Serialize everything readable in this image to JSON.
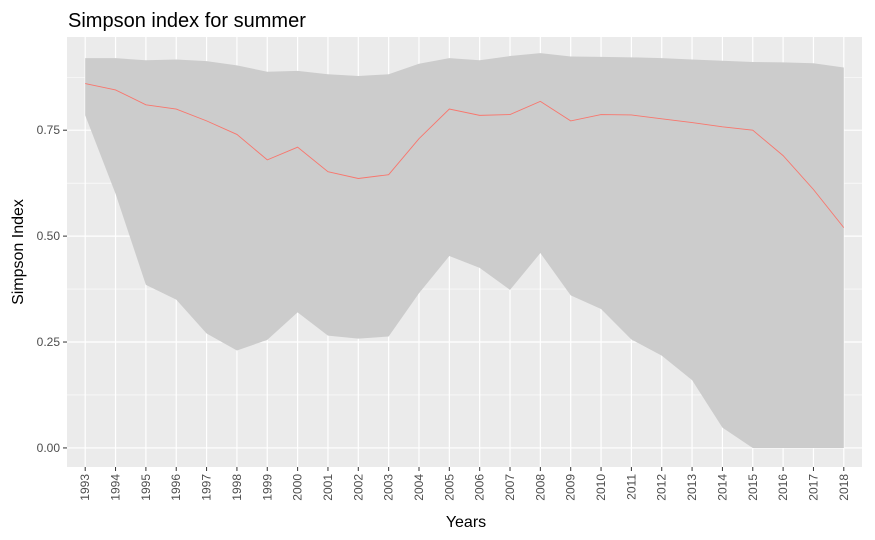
{
  "chart_data": {
    "type": "line",
    "title": "Simpson index for summer",
    "xlabel": "Years",
    "ylabel": "Simpson Index",
    "x": [
      "1993",
      "1994",
      "1995",
      "1996",
      "1997",
      "1998",
      "1999",
      "2000",
      "2001",
      "2002",
      "2003",
      "2004",
      "2005",
      "2006",
      "2007",
      "2008",
      "2009",
      "2010",
      "2011",
      "2012",
      "2013",
      "2014",
      "2015",
      "2016",
      "2017",
      "2018"
    ],
    "series": [
      {
        "values": [
          0.86,
          0.845,
          0.81,
          0.8,
          0.772,
          0.74,
          0.68,
          0.71,
          0.652,
          0.636,
          0.645,
          0.73,
          0.8,
          0.785,
          0.787,
          0.818,
          0.772,
          0.787,
          0.786,
          0.777,
          0.768,
          0.758,
          0.75,
          0.69,
          0.61,
          0.52
        ],
        "lower": [
          0.785,
          0.6,
          0.385,
          0.35,
          0.27,
          0.23,
          0.255,
          0.32,
          0.265,
          0.258,
          0.263,
          0.365,
          0.453,
          0.425,
          0.373,
          0.46,
          0.36,
          0.328,
          0.256,
          0.218,
          0.16,
          0.048,
          0.0,
          0.0,
          0.0,
          0.0
        ],
        "upper": [
          0.92,
          0.92,
          0.915,
          0.917,
          0.913,
          0.903,
          0.888,
          0.89,
          0.882,
          0.878,
          0.882,
          0.907,
          0.92,
          0.915,
          0.925,
          0.932,
          0.924,
          0.923,
          0.922,
          0.92,
          0.917,
          0.914,
          0.911,
          0.91,
          0.908,
          0.898
        ]
      }
    ],
    "ylim": [
      -0.045,
      0.97
    ],
    "yticks": [
      0.0,
      0.25,
      0.5,
      0.75
    ],
    "ytick_labels": [
      "0.00",
      "0.25",
      "0.50",
      "0.75"
    ],
    "grid": true,
    "colors": {
      "panel_background": "#EBEBEB",
      "grid": "#FFFFFF",
      "ribbon": "#CCCCCC",
      "line": "#F8766D",
      "tick": "#333333",
      "tick_label": "#4D4D4D"
    }
  }
}
